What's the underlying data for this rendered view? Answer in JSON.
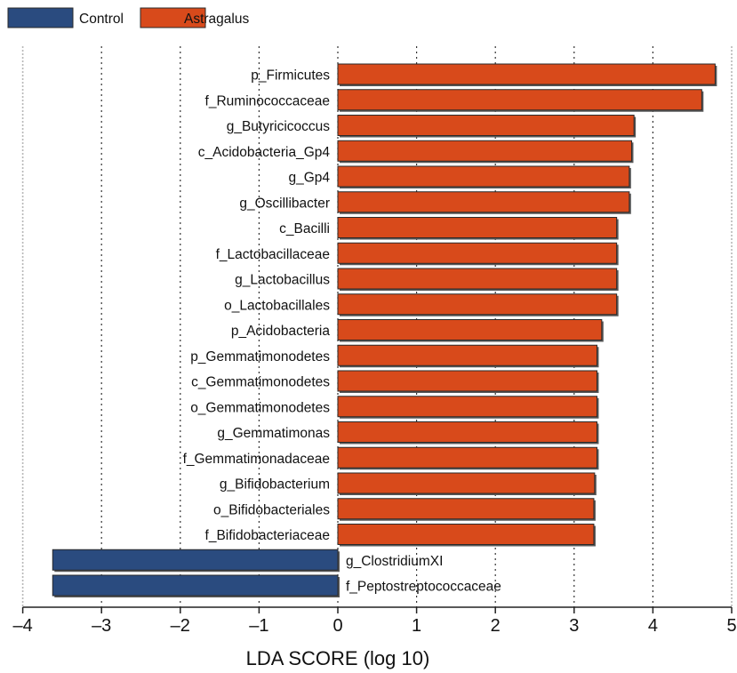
{
  "chart_data": {
    "type": "bar",
    "orientation": "horizontal",
    "xlabel": "LDA SCORE (log 10)",
    "xlim": [
      -4,
      5
    ],
    "xticks": [
      "–4",
      "–3",
      "–2",
      "–1",
      "0",
      "1",
      "2",
      "3",
      "4",
      "5"
    ],
    "grid": true,
    "legend": {
      "placement": "top-left",
      "entries": [
        {
          "name": "Control",
          "color": "#2a4b7f"
        },
        {
          "name": "Astragalus",
          "color": "#d84a1b"
        }
      ]
    },
    "categories": [
      "p_Firmicutes",
      "f_Ruminococcaceae",
      "g_Butyricicoccus",
      "c_Acidobacteria_Gp4",
      "g_Gp4",
      "g_Oscillibacter",
      "c_Bacilli",
      "f_Lactobacillaceae",
      "g_Lactobacillus",
      "o_Lactobacillales",
      "p_Acidobacteria",
      "p_Gemmatimonodetes",
      "c_Gemmatimonodetes",
      "o_Gemmatimonodetes",
      "g_Gemmatimonas",
      "f_Gemmatimonadaceae",
      "g_Bifidobacterium",
      "o_Bifidobacteriales",
      "f_Bifidobacteriaceae",
      "g_ClostridiumXI",
      "f_Peptostreptococcaceae"
    ],
    "values": [
      4.79,
      4.62,
      3.76,
      3.73,
      3.7,
      3.7,
      3.54,
      3.54,
      3.54,
      3.54,
      3.35,
      3.29,
      3.29,
      3.29,
      3.29,
      3.29,
      3.26,
      3.25,
      3.25,
      -3.62,
      -3.62
    ],
    "groups": [
      "Astragalus",
      "Astragalus",
      "Astragalus",
      "Astragalus",
      "Astragalus",
      "Astragalus",
      "Astragalus",
      "Astragalus",
      "Astragalus",
      "Astragalus",
      "Astragalus",
      "Astragalus",
      "Astragalus",
      "Astragalus",
      "Astragalus",
      "Astragalus",
      "Astragalus",
      "Astragalus",
      "Astragalus",
      "Control",
      "Control"
    ]
  }
}
